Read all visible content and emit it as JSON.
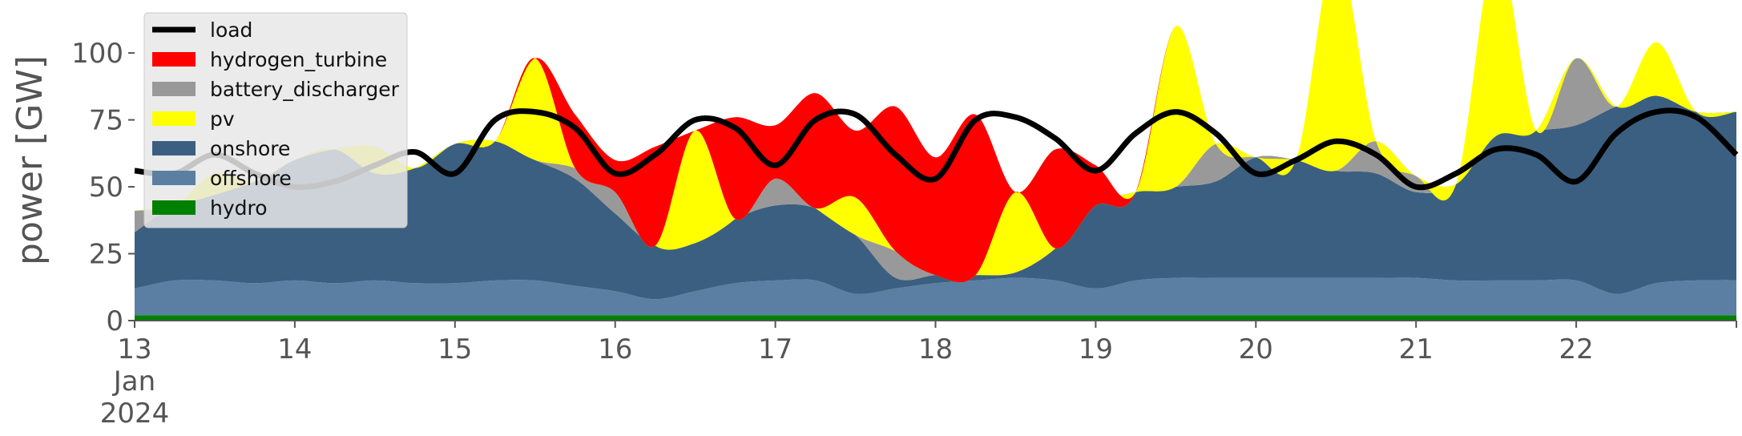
{
  "chart_data": {
    "type": "area",
    "ylabel": "power [GW]",
    "xlabel": "",
    "ylim": [
      0,
      118
    ],
    "xlim": [
      13,
      23
    ],
    "grid": false,
    "legend_position": "top-left",
    "yticks": [
      0,
      25,
      50,
      75,
      100
    ],
    "xticks": [
      {
        "x": 13,
        "lines": [
          "13",
          "Jan",
          "2024"
        ]
      },
      {
        "x": 14,
        "lines": [
          "14"
        ]
      },
      {
        "x": 15,
        "lines": [
          "15"
        ]
      },
      {
        "x": 16,
        "lines": [
          "16"
        ]
      },
      {
        "x": 17,
        "lines": [
          "17"
        ]
      },
      {
        "x": 18,
        "lines": [
          "18"
        ]
      },
      {
        "x": 19,
        "lines": [
          "19"
        ]
      },
      {
        "x": 20,
        "lines": [
          "20"
        ]
      },
      {
        "x": 21,
        "lines": [
          "21"
        ]
      },
      {
        "x": 22,
        "lines": [
          "22"
        ]
      }
    ],
    "legend": [
      {
        "label": "load",
        "kind": "line",
        "color": "#000000"
      },
      {
        "label": "hydrogen_turbine",
        "kind": "patch",
        "color": "#ff0000"
      },
      {
        "label": "battery_discharger",
        "kind": "patch",
        "color": "#999999"
      },
      {
        "label": "pv",
        "kind": "patch",
        "color": "#ffff00"
      },
      {
        "label": "onshore",
        "kind": "patch",
        "color": "#3b5f80"
      },
      {
        "label": "offshore",
        "kind": "patch",
        "color": "#5a7fa3"
      },
      {
        "label": "hydro",
        "kind": "patch",
        "color": "#008000"
      }
    ],
    "x": [
      13.0,
      13.25,
      13.5,
      13.75,
      14.0,
      14.25,
      14.5,
      14.75,
      15.0,
      15.25,
      15.5,
      15.75,
      16.0,
      16.25,
      16.5,
      16.75,
      17.0,
      17.25,
      17.5,
      17.75,
      18.0,
      18.25,
      18.5,
      18.75,
      19.0,
      19.25,
      19.5,
      19.75,
      20.0,
      20.25,
      20.5,
      20.75,
      21.0,
      21.25,
      21.5,
      21.75,
      22.0,
      22.25,
      22.5,
      22.75,
      23.0
    ],
    "series": [
      {
        "name": "hydro",
        "color": "#008000",
        "values": [
          2,
          2,
          2,
          2,
          2,
          2,
          2,
          2,
          2,
          2,
          2,
          2,
          2,
          2,
          2,
          2,
          2,
          2,
          2,
          2,
          2,
          2,
          2,
          2,
          2,
          2,
          2,
          2,
          2,
          2,
          2,
          2,
          2,
          2,
          2,
          2,
          2,
          2,
          2,
          2,
          2
        ]
      },
      {
        "name": "offshore",
        "color": "#5a7fa3",
        "values": [
          10,
          13,
          13,
          12,
          13,
          12,
          13,
          12,
          12,
          13,
          13,
          11,
          9,
          6,
          9,
          12,
          13,
          13,
          8,
          10,
          12,
          13,
          14,
          13,
          10,
          13,
          14,
          14,
          14,
          14,
          14,
          14,
          14,
          13,
          13,
          13,
          13,
          8,
          12,
          13,
          13
        ]
      },
      {
        "name": "onshore",
        "color": "#3b5f80",
        "values": [
          21,
          28,
          32,
          38,
          45,
          50,
          40,
          43,
          52,
          52,
          45,
          40,
          29,
          20,
          18,
          24,
          28,
          27,
          22,
          4,
          3,
          2,
          2,
          12,
          31,
          33,
          34,
          36,
          45,
          44,
          40,
          39,
          32,
          36,
          54,
          56,
          58,
          70,
          70,
          63,
          63
        ]
      },
      {
        "name": "battery_discharger",
        "color": "#999999",
        "values": [
          8,
          0,
          0,
          0,
          0,
          0,
          0,
          0,
          0,
          0,
          0,
          4,
          8,
          0,
          0,
          0,
          10,
          0,
          0,
          10,
          0,
          0,
          0,
          0,
          0,
          0,
          0,
          14,
          0,
          0,
          0,
          12,
          6,
          0,
          0,
          0,
          25,
          0,
          0,
          0,
          0
        ]
      },
      {
        "name": "pv",
        "color": "#ffff00",
        "values": [
          0,
          0,
          8,
          0,
          0,
          0,
          10,
          0,
          0,
          0,
          38,
          0,
          0,
          0,
          42,
          0,
          0,
          0,
          14,
          0,
          0,
          0,
          30,
          0,
          0,
          0,
          60,
          0,
          0,
          0,
          82,
          0,
          0,
          0,
          70,
          0,
          0,
          0,
          20,
          0,
          0
        ]
      },
      {
        "name": "hydrogen_turbine",
        "color": "#ff0000",
        "values": [
          0,
          0,
          0,
          0,
          0,
          0,
          0,
          0,
          0,
          0,
          0,
          20,
          12,
          37,
          0,
          38,
          20,
          43,
          25,
          54,
          44,
          60,
          0,
          37,
          15,
          0,
          0,
          0,
          0,
          0,
          0,
          0,
          0,
          0,
          0,
          0,
          0,
          0,
          0,
          0,
          0
        ]
      },
      {
        "name": "load",
        "color": "#000000",
        "kind": "line",
        "values": [
          56,
          55,
          62,
          55,
          50,
          52,
          58,
          63,
          55,
          75,
          78,
          72,
          55,
          62,
          75,
          72,
          58,
          75,
          77,
          62,
          53,
          75,
          76,
          68,
          56,
          70,
          78,
          70,
          55,
          60,
          67,
          62,
          50,
          55,
          64,
          62,
          52,
          70,
          78,
          76,
          62
        ]
      }
    ]
  }
}
